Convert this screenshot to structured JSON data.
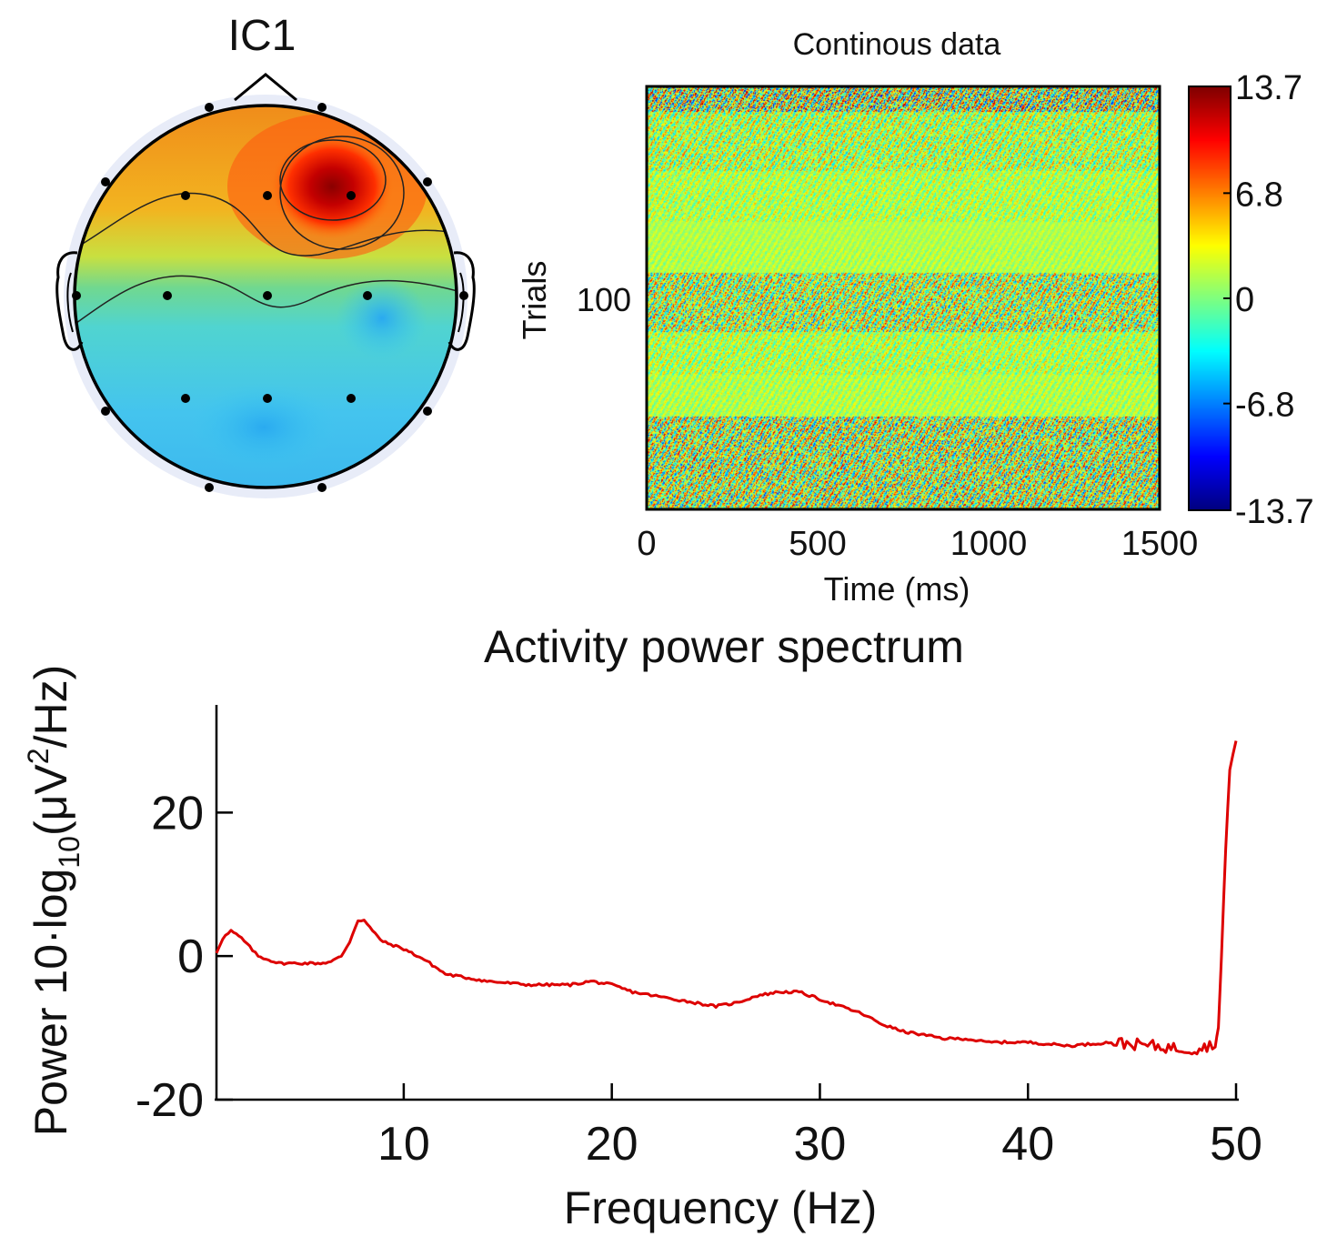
{
  "topomap": {
    "title": "IC1"
  },
  "image_plot": {
    "title": "Continous data",
    "ylabel": "Trials",
    "xlabel": "Time (ms)",
    "y_ticks": [
      "100"
    ],
    "x_ticks": [
      "0",
      "500",
      "1000",
      "1500"
    ],
    "colorbar_ticks": [
      "13.7",
      "6.8",
      "0",
      "-6.8",
      "-13.7"
    ]
  },
  "spectrum": {
    "title": "Activity power spectrum",
    "xlabel": "Frequency (Hz)",
    "ylabel_main": "Power 10·log",
    "ylabel_sub": "10",
    "ylabel_paren": "(μV",
    "ylabel_sup": "2",
    "ylabel_tail": "/Hz)",
    "x_ticks": [
      "10",
      "20",
      "30",
      "40",
      "50"
    ],
    "y_ticks": [
      "20",
      "0",
      "-20"
    ],
    "line_color": "#dd0000"
  },
  "chart_data": [
    {
      "type": "heatmap",
      "title": "IC1",
      "description_values": {
        "scale_min": -13.7,
        "scale_max": 13.7
      },
      "note": "scalp topography"
    },
    {
      "type": "heatmap",
      "title": "Continous data",
      "xlabel": "Time (ms)",
      "ylabel": "Trials",
      "xlim": [
        0,
        1500
      ],
      "x_ticks": [
        0,
        500,
        1000,
        1500
      ],
      "y_ticks": [
        100
      ],
      "colorbar": {
        "min": -13.7,
        "max": 13.7,
        "ticks": [
          13.7,
          6.8,
          0,
          -6.8,
          -13.7
        ]
      }
    },
    {
      "type": "line",
      "title": "Activity power spectrum",
      "xlabel": "Frequency (Hz)",
      "ylabel": "Power 10·log10(μV2/Hz)",
      "xlim": [
        1,
        50
      ],
      "ylim": [
        -20,
        35
      ],
      "x_ticks": [
        10,
        20,
        30,
        40,
        50
      ],
      "y_ticks": [
        -20,
        0,
        20
      ],
      "series": [
        {
          "name": "IC1",
          "x": [
            1,
            1.3,
            1.7,
            2.2,
            3,
            3.5,
            4,
            5,
            6,
            6.5,
            7,
            7.4,
            7.8,
            8.1,
            8.5,
            9,
            10,
            11,
            12,
            13,
            14,
            16,
            18,
            19,
            20,
            21,
            23,
            25,
            26,
            27,
            28,
            29,
            30,
            31,
            32,
            33,
            34,
            35,
            36,
            37,
            38,
            40,
            42,
            44,
            46,
            47,
            48,
            48.6,
            49,
            49.15,
            49.3,
            49.5,
            49.7,
            50
          ],
          "y": [
            0.5,
            2.5,
            3.5,
            2.5,
            0,
            -0.5,
            -1,
            -1,
            -1,
            -0.8,
            0,
            2,
            5,
            5,
            3.5,
            2,
            1,
            -0.5,
            -2.5,
            -3,
            -3.5,
            -4,
            -4,
            -3.5,
            -4,
            -5,
            -6,
            -7,
            -6.5,
            -5.5,
            -5,
            -5,
            -6,
            -7,
            -8,
            -9.5,
            -10.5,
            -11,
            -11.5,
            -11.5,
            -12,
            -12,
            -12.5,
            -12,
            -12.5,
            -12.8,
            -13,
            -12.5,
            -12.5,
            -10,
            0,
            15,
            26,
            30
          ]
        }
      ]
    }
  ]
}
